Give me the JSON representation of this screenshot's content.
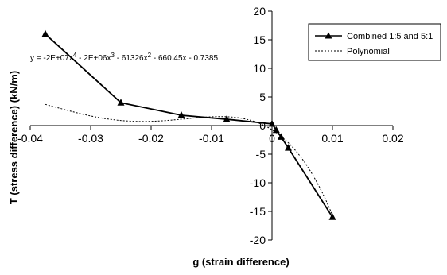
{
  "chart_data": {
    "type": "scatter",
    "xlabel": "g (strain difference)",
    "ylabel": "T (stress difference) (kN/m)",
    "xlim": [
      -0.04,
      0.02
    ],
    "ylim": [
      -20,
      20
    ],
    "x_ticks": [
      -0.04,
      -0.03,
      -0.02,
      -0.01,
      0,
      0.01,
      0.02
    ],
    "x_tick_labels": [
      "-0.04",
      "-0.03",
      "-0.02",
      "-0.01",
      "0",
      "0.01",
      "0.02"
    ],
    "y_ticks": [
      20,
      15,
      10,
      5,
      0,
      -5,
      -10,
      -15,
      -20
    ],
    "y_tick_labels": [
      "20",
      "15",
      "10",
      "5",
      "0",
      "-5",
      "-10",
      "-15",
      "-20"
    ],
    "grid": false,
    "legend_position": "top-right",
    "series": [
      {
        "name": "Combined 1:5 and 5:1",
        "style": "solid-line-triangle-markers",
        "color": "#000000",
        "x": [
          -0.0375,
          -0.025,
          -0.015,
          -0.0075,
          0,
          0.0007,
          0.0015,
          0.0027,
          0.01
        ],
        "y": [
          16,
          4,
          1.8,
          1.1,
          0.3,
          -0.8,
          -2,
          -3.9,
          -16
        ]
      },
      {
        "name": "Polynomial",
        "style": "dotted-line",
        "color": "#000000",
        "coefficients": {
          "x4": -20000000,
          "x3": -2000000,
          "x2": -61326,
          "x1": -660.45,
          "x0": -0.7385
        },
        "x_range": [
          -0.0375,
          0.01
        ]
      }
    ],
    "annotations": [
      {
        "text_parts": [
          "y = -2E+07x",
          "4",
          " - 2E+06x",
          "3",
          " - 61326x",
          "2",
          " - 660.45x - 0.7385"
        ]
      }
    ]
  }
}
